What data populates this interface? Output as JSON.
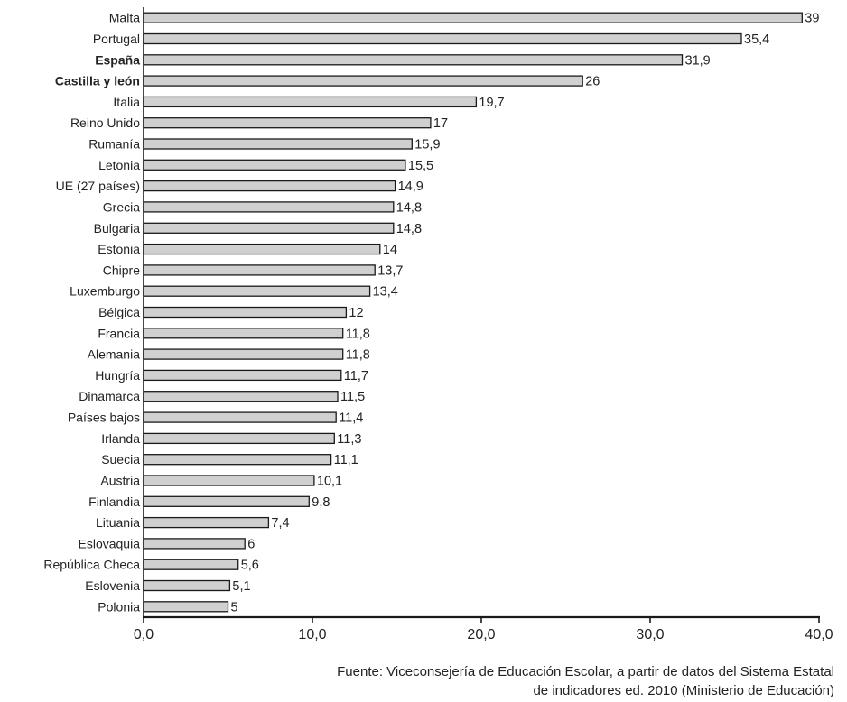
{
  "chart_data": {
    "type": "bar",
    "orientation": "horizontal",
    "categories": [
      "Malta",
      "Portugal",
      "España",
      "Castilla y león",
      "Italia",
      "Reino Unido",
      "Rumanía",
      "Letonia",
      "UE (27 países)",
      "Grecia",
      "Bulgaria",
      "Estonia",
      "Chipre",
      "Luxemburgo",
      "Bélgica",
      "Francia",
      "Alemania",
      "Hungría",
      "Dinamarca",
      "Países bajos",
      "Irlanda",
      "Suecia",
      "Austria",
      "Finlandia",
      "Lituania",
      "Eslovaquia",
      "República Checa",
      "Eslovenia",
      "Polonia"
    ],
    "values": [
      39,
      35.4,
      31.9,
      26,
      19.7,
      17,
      15.9,
      15.5,
      14.9,
      14.8,
      14.8,
      14,
      13.7,
      13.4,
      12,
      11.8,
      11.8,
      11.7,
      11.5,
      11.4,
      11.3,
      11.1,
      10.1,
      9.8,
      7.4,
      6,
      5.6,
      5.1,
      5
    ],
    "value_labels": [
      "39",
      "35,4",
      "31,9",
      "26",
      "19,7",
      "17",
      "15,9",
      "15,5",
      "14,9",
      "14,8",
      "14,8",
      "14",
      "13,7",
      "13,4",
      "12",
      "11,8",
      "11,8",
      "11,7",
      "11,5",
      "11,4",
      "11,3",
      "11,1",
      "10,1",
      "9,8",
      "7,4",
      "6",
      "5,6",
      "5,1",
      "5"
    ],
    "bold_categories": [
      "España",
      "Castilla y león"
    ],
    "xlim": [
      0,
      40
    ],
    "x_ticks": [
      0,
      10,
      20,
      30,
      40
    ],
    "x_tick_labels": [
      "0,0",
      "10,0",
      "20,0",
      "30,0",
      "40,0"
    ],
    "grid": false,
    "bar_color": "#d0d0d0",
    "bar_edge_color": "#1a1a1a"
  },
  "source_note": "Fuente: Viceconsejería de Educación Escolar, a partir de datos del Sistema Estatal\nde indicadores ed. 2010 (Ministerio de Educación)"
}
